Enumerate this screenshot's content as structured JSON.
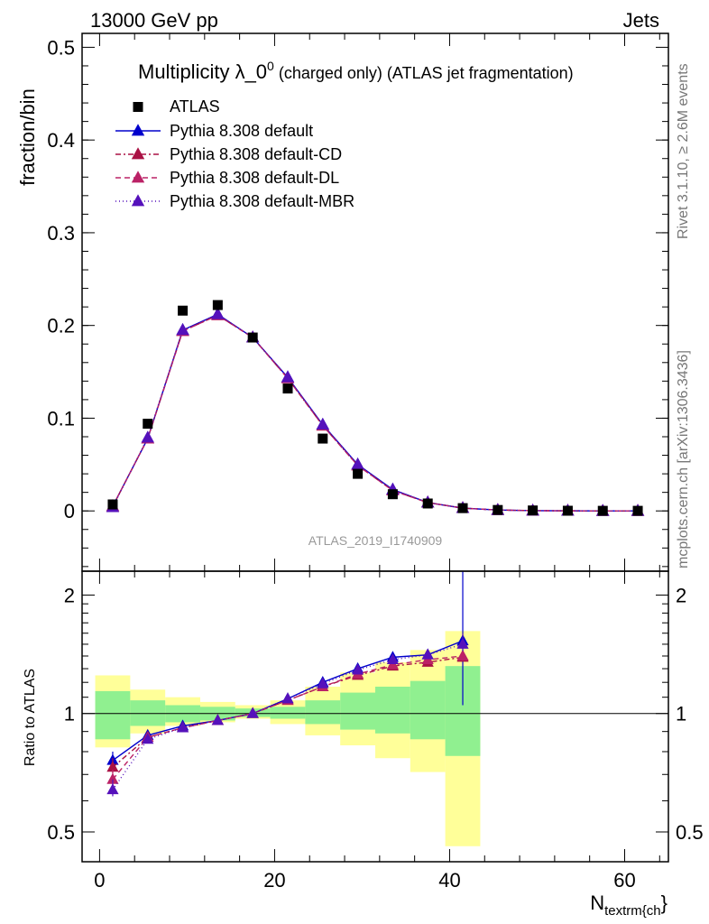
{
  "header": {
    "energy_label": "13000 GeV pp",
    "category_label": "Jets"
  },
  "side_labels": {
    "rivet": "Rivet 3.1.10, ≥ 2.6M events",
    "mcplots": "mcplots.cern.ch [arXiv:1306.3436]"
  },
  "chart_data": [
    {
      "type": "scatter",
      "panel": "main",
      "title": "Multiplicity λ_0",
      "title_superscript": "0",
      "title_suffix": " (charged only) (ATLAS jet fragmentation)",
      "ylabel": "fraction/bin",
      "xlim": [
        -2,
        65
      ],
      "ylim": [
        -0.065,
        0.515
      ],
      "yticks": [
        0,
        0.1,
        0.2,
        0.3,
        0.4,
        0.5
      ],
      "ytick_labels": [
        "0",
        "0.1",
        "0.2",
        "0.3",
        "0.4",
        "0.5"
      ],
      "legend_position": "top-left",
      "watermark": "ATLAS_2019_I1740909",
      "data": {
        "name": "ATLAS",
        "color": "#000000",
        "x": [
          1.5,
          5.5,
          9.5,
          13.5,
          17.5,
          21.5,
          25.5,
          29.5,
          33.5,
          37.5,
          41.5,
          45.5,
          49.5,
          53.5,
          57.5,
          61.5
        ],
        "y": [
          0.007,
          0.094,
          0.216,
          0.222,
          0.187,
          0.132,
          0.078,
          0.04,
          0.018,
          0.008,
          0.003,
          0.001,
          0.0005,
          0.0002,
          0.0001,
          0.0001
        ]
      },
      "series": [
        {
          "name": "Pythia 8.308 default",
          "color": "#0000cc",
          "dash": "solid",
          "x": [
            1.5,
            5.5,
            9.5,
            13.5,
            17.5,
            21.5,
            25.5,
            29.5,
            33.5,
            37.5,
            41.5,
            45.5,
            49.5,
            53.5,
            57.5,
            61.5
          ],
          "y": [
            0.005,
            0.078,
            0.195,
            0.212,
            0.187,
            0.144,
            0.093,
            0.05,
            0.023,
            0.009,
            0.003,
            0.001,
            0.0003,
            0.0001,
            0.0,
            0.0
          ]
        },
        {
          "name": "Pythia 8.308 default-CD",
          "color": "#aa1144",
          "dash": "6,3,2,3",
          "x": [
            1.5,
            5.5,
            9.5,
            13.5,
            17.5,
            21.5,
            25.5,
            29.5,
            33.5,
            37.5,
            41.5,
            45.5,
            49.5,
            53.5,
            57.5,
            61.5
          ],
          "y": [
            0.005,
            0.078,
            0.194,
            0.211,
            0.187,
            0.143,
            0.092,
            0.049,
            0.022,
            0.009,
            0.003,
            0.001,
            0.0003,
            0.0001,
            0.0,
            0.0
          ]
        },
        {
          "name": "Pythia 8.308 default-DL",
          "color": "#bb2266",
          "dash": "6,4",
          "x": [
            1.5,
            5.5,
            9.5,
            13.5,
            17.5,
            21.5,
            25.5,
            29.5,
            33.5,
            37.5,
            41.5,
            45.5,
            49.5,
            53.5,
            57.5,
            61.5
          ],
          "y": [
            0.005,
            0.078,
            0.194,
            0.211,
            0.187,
            0.143,
            0.092,
            0.049,
            0.022,
            0.009,
            0.003,
            0.001,
            0.0003,
            0.0001,
            0.0,
            0.0
          ]
        },
        {
          "name": "Pythia 8.308 default-MBR",
          "color": "#5511bb",
          "dash": "1,3",
          "x": [
            1.5,
            5.5,
            9.5,
            13.5,
            17.5,
            21.5,
            25.5,
            29.5,
            33.5,
            37.5,
            41.5,
            45.5,
            49.5,
            53.5,
            57.5,
            61.5
          ],
          "y": [
            0.004,
            0.079,
            0.195,
            0.212,
            0.187,
            0.144,
            0.093,
            0.05,
            0.023,
            0.009,
            0.003,
            0.001,
            0.0003,
            0.0001,
            0.0,
            0.0
          ]
        }
      ]
    },
    {
      "type": "line",
      "panel": "ratio",
      "ylabel": "Ratio to ATLAS",
      "xlabel_main": "N",
      "xlabel_sub": "textrm{ch",
      "xlabel_tail": "}",
      "xlim": [
        -2,
        65
      ],
      "ylim": [
        0.42,
        2.3
      ],
      "log_y": true,
      "yticks": [
        0.5,
        1,
        2
      ],
      "ytick_labels": [
        "0.5",
        "1",
        "2"
      ],
      "xticks": [
        0,
        20,
        40,
        60
      ],
      "xtick_labels": [
        "0",
        "20",
        "40",
        "60"
      ],
      "bands": {
        "bin_edges": [
          -0.5,
          3.5,
          7.5,
          11.5,
          15.5,
          19.5,
          23.5,
          27.5,
          31.5,
          35.5,
          39.5,
          43.5
        ],
        "inner": {
          "color": "#90f090",
          "low": [
            0.86,
            0.93,
            0.95,
            0.96,
            0.98,
            0.97,
            0.94,
            0.91,
            0.89,
            0.86,
            0.78
          ],
          "high": [
            1.14,
            1.08,
            1.05,
            1.04,
            1.03,
            1.04,
            1.08,
            1.13,
            1.17,
            1.21,
            1.32
          ]
        },
        "outer": {
          "color": "#ffff99",
          "low": [
            0.82,
            0.89,
            0.93,
            0.95,
            0.97,
            0.94,
            0.88,
            0.83,
            0.77,
            0.71,
            0.46
          ],
          "high": [
            1.25,
            1.15,
            1.1,
            1.07,
            1.05,
            1.08,
            1.17,
            1.27,
            1.35,
            1.45,
            1.62
          ]
        }
      },
      "series": [
        {
          "name": "Pythia 8.308 default",
          "color": "#0000cc",
          "dash": "solid",
          "x": [
            1.5,
            5.5,
            9.5,
            13.5,
            17.5,
            21.5,
            25.5,
            29.5,
            33.5,
            37.5,
            41.5
          ],
          "y": [
            0.76,
            0.88,
            0.93,
            0.96,
            1.0,
            1.09,
            1.2,
            1.3,
            1.39,
            1.41,
            1.53
          ],
          "err": [
            0.04,
            0,
            0,
            0,
            0,
            0,
            0,
            0,
            0,
            0.03,
            0.8
          ]
        },
        {
          "name": "Pythia 8.308 default-CD",
          "color": "#aa1144",
          "dash": "6,3,2,3",
          "x": [
            1.5,
            5.5,
            9.5,
            13.5,
            17.5,
            21.5,
            25.5,
            29.5,
            33.5,
            37.5,
            41.5
          ],
          "y": [
            0.73,
            0.87,
            0.92,
            0.96,
            1.0,
            1.08,
            1.17,
            1.25,
            1.32,
            1.35,
            1.39
          ],
          "err": [
            0.04,
            0,
            0,
            0,
            0,
            0,
            0,
            0,
            0,
            0.03,
            0.05
          ]
        },
        {
          "name": "Pythia 8.308 default-DL",
          "color": "#bb2266",
          "dash": "6,4",
          "x": [
            1.5,
            5.5,
            9.5,
            13.5,
            17.5,
            21.5,
            25.5,
            29.5,
            33.5,
            37.5,
            41.5
          ],
          "y": [
            0.68,
            0.87,
            0.92,
            0.96,
            1.0,
            1.08,
            1.17,
            1.26,
            1.33,
            1.37,
            1.4
          ],
          "err": [
            0.04,
            0,
            0,
            0,
            0,
            0,
            0,
            0,
            0,
            0.03,
            0.05
          ]
        },
        {
          "name": "Pythia 8.308 default-MBR",
          "color": "#5511bb",
          "dash": "1,3",
          "x": [
            1.5,
            5.5,
            9.5,
            13.5,
            17.5,
            21.5,
            25.5,
            29.5,
            33.5,
            37.5,
            41.5
          ],
          "y": [
            0.64,
            0.86,
            0.92,
            0.96,
            1.0,
            1.09,
            1.19,
            1.29,
            1.37,
            1.41,
            1.5
          ],
          "err": [
            0.04,
            0,
            0,
            0,
            0,
            0,
            0,
            0,
            0,
            0.03,
            0.1
          ]
        }
      ]
    }
  ]
}
